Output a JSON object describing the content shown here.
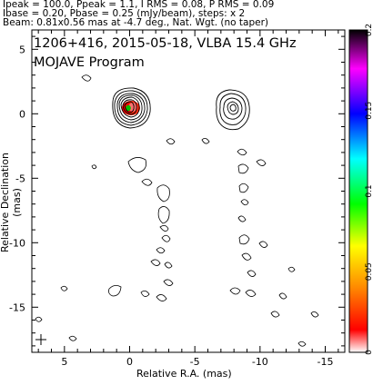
{
  "header": {
    "line1": "Ipeak = 100.0, Ppeak = 1.1, I RMS = 0.08, P RMS = 0.09",
    "line2": "Ibase = 0.20, Pbase = 0.25 (mJy/beam), steps: x 2",
    "line3": "Beam: 0.81x0.56 mas at -4.7 deg., Nat. Wgt. (no taper)"
  },
  "chart_data": {
    "type": "contour",
    "title": "1206+416, 2015-05-18, VLBA 15.4 GHz",
    "subtitle": "MOJAVE Program",
    "xlabel": "Relative R.A. (mas)",
    "ylabel": "Relative Declination (mas)",
    "xlim": [
      7.5,
      -16.5
    ],
    "ylim": [
      -18.5,
      6.5
    ],
    "x_ticks": [
      5,
      0,
      -5,
      -10,
      -15
    ],
    "y_ticks": [
      5,
      0,
      -5,
      -10,
      -15
    ],
    "colorbar": {
      "range": [
        0,
        0.2
      ],
      "ticks": [
        "0",
        "0.05",
        "0.1",
        "0.15",
        "0.2"
      ],
      "stops": [
        "#ff0000",
        "#ffa500",
        "#ffff00",
        "#00ff00",
        "#00ffff",
        "#0000ff",
        "#ff00ff",
        "#000000"
      ]
    },
    "core": {
      "x": 0,
      "y": 0,
      "peak": 100.0
    },
    "secondary_component": {
      "x": -7.6,
      "y": 0.2
    },
    "beam_marker": {
      "x": 6.5,
      "y": -17.5
    }
  }
}
